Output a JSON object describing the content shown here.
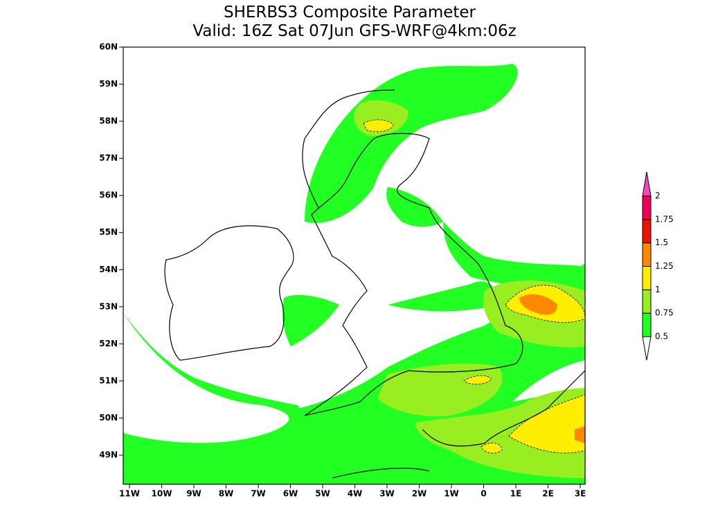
{
  "title": [
    "SHERBS3 Composite Parameter",
    "Valid: 16Z Sat 07Jun GFS-WRF@4km:06z"
  ],
  "y_axis": {
    "labels": [
      "60N",
      "59N",
      "58N",
      "57N",
      "56N",
      "55N",
      "54N",
      "53N",
      "52N",
      "51N",
      "50N",
      "49N"
    ]
  },
  "x_axis": {
    "labels": [
      "11W",
      "10W",
      "9W",
      "8W",
      "7W",
      "6W",
      "5W",
      "4W",
      "3W",
      "2W",
      "1W",
      "0",
      "1E",
      "2E",
      "3E"
    ]
  },
  "colorbar": {
    "levels": [
      "0.5",
      "0.75",
      "1",
      "1.25",
      "1.5",
      "1.75",
      "2"
    ],
    "colors": [
      "#ffffff",
      "#22ff22",
      "#99ee22",
      "#ffee00",
      "#ff8800",
      "#ee1100",
      "#ee0055",
      "#ff44bb"
    ]
  }
}
